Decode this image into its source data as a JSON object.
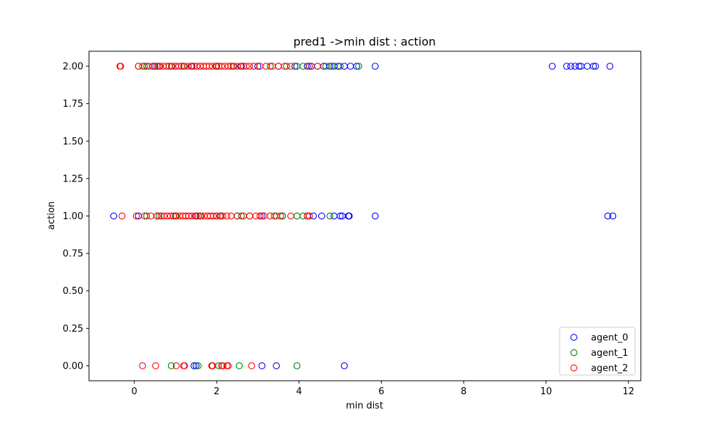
{
  "chart_data": {
    "type": "scatter",
    "title": "pred1 ->min dist : action",
    "xlabel": "min dist",
    "ylabel": "action",
    "xlim": [
      -1.1,
      12.3
    ],
    "ylim": [
      -0.1,
      2.1
    ],
    "xticks": [
      0,
      2,
      4,
      6,
      8,
      10,
      12
    ],
    "xtick_labels": [
      "0",
      "2",
      "4",
      "6",
      "8",
      "10",
      "12"
    ],
    "yticks": [
      0.0,
      0.25,
      0.5,
      0.75,
      1.0,
      1.25,
      1.5,
      1.75,
      2.0
    ],
    "ytick_labels": [
      "0.00",
      "0.25",
      "0.50",
      "0.75",
      "1.00",
      "1.25",
      "1.50",
      "1.75",
      "2.00"
    ],
    "grid": false,
    "legend_position": "bottom-right",
    "marker": "open-circle",
    "series": [
      {
        "name": "agent_0",
        "color": "#0000ff",
        "points": [
          [
            0.45,
            2
          ],
          [
            0.5,
            2
          ],
          [
            0.55,
            2
          ],
          [
            1.0,
            2
          ],
          [
            1.4,
            2
          ],
          [
            2.0,
            2
          ],
          [
            2.6,
            2
          ],
          [
            3.0,
            2
          ],
          [
            3.5,
            2
          ],
          [
            3.9,
            2
          ],
          [
            4.2,
            2
          ],
          [
            4.3,
            2
          ],
          [
            4.6,
            2
          ],
          [
            4.75,
            2
          ],
          [
            4.85,
            2
          ],
          [
            4.95,
            2
          ],
          [
            5.1,
            2
          ],
          [
            5.25,
            2
          ],
          [
            5.4,
            2
          ],
          [
            5.85,
            2
          ],
          [
            10.15,
            2
          ],
          [
            10.5,
            2
          ],
          [
            10.6,
            2
          ],
          [
            10.7,
            2
          ],
          [
            10.8,
            2
          ],
          [
            10.85,
            2
          ],
          [
            11.0,
            2
          ],
          [
            11.15,
            2
          ],
          [
            11.2,
            2
          ],
          [
            11.55,
            2
          ],
          [
            -0.5,
            1
          ],
          [
            0.1,
            1
          ],
          [
            0.55,
            1
          ],
          [
            1.0,
            1
          ],
          [
            1.5,
            1
          ],
          [
            2.0,
            1
          ],
          [
            2.5,
            1
          ],
          [
            3.1,
            1
          ],
          [
            3.6,
            1
          ],
          [
            4.2,
            1
          ],
          [
            4.35,
            1
          ],
          [
            4.55,
            1
          ],
          [
            4.85,
            1
          ],
          [
            5.0,
            1
          ],
          [
            5.05,
            1
          ],
          [
            5.2,
            1
          ],
          [
            5.22,
            1
          ],
          [
            5.85,
            1
          ],
          [
            11.5,
            1
          ],
          [
            11.62,
            1
          ],
          [
            1.45,
            0
          ],
          [
            1.5,
            0
          ],
          [
            3.1,
            0
          ],
          [
            3.45,
            0
          ],
          [
            5.1,
            0
          ]
        ]
      },
      {
        "name": "agent_1",
        "color": "#008000",
        "points": [
          [
            0.1,
            2
          ],
          [
            0.2,
            2
          ],
          [
            0.3,
            2
          ],
          [
            0.6,
            2
          ],
          [
            0.9,
            2
          ],
          [
            1.2,
            2
          ],
          [
            1.6,
            2
          ],
          [
            2.0,
            2
          ],
          [
            2.4,
            2
          ],
          [
            2.9,
            2
          ],
          [
            3.3,
            2
          ],
          [
            3.7,
            2
          ],
          [
            3.95,
            2
          ],
          [
            4.1,
            2
          ],
          [
            4.25,
            2
          ],
          [
            4.45,
            2
          ],
          [
            4.65,
            2
          ],
          [
            4.8,
            2
          ],
          [
            5.0,
            2
          ],
          [
            5.45,
            2
          ],
          [
            0.3,
            1
          ],
          [
            0.6,
            1
          ],
          [
            1.0,
            1
          ],
          [
            1.6,
            1
          ],
          [
            2.1,
            1
          ],
          [
            2.6,
            1
          ],
          [
            2.8,
            1
          ],
          [
            3.4,
            1
          ],
          [
            3.6,
            1
          ],
          [
            3.95,
            1
          ],
          [
            4.1,
            1
          ],
          [
            4.75,
            1
          ],
          [
            0.9,
            0
          ],
          [
            1.55,
            0
          ],
          [
            1.9,
            0
          ],
          [
            2.05,
            0
          ],
          [
            2.55,
            0
          ],
          [
            3.95,
            0
          ]
        ]
      },
      {
        "name": "agent_2",
        "color": "#ff0000",
        "points": [
          [
            -0.35,
            2
          ],
          [
            -0.33,
            2
          ],
          [
            0.1,
            2
          ],
          [
            0.25,
            2
          ],
          [
            0.35,
            2
          ],
          [
            0.45,
            2
          ],
          [
            0.55,
            2
          ],
          [
            0.62,
            2
          ],
          [
            0.7,
            2
          ],
          [
            0.78,
            2
          ],
          [
            0.85,
            2
          ],
          [
            0.92,
            2
          ],
          [
            1.0,
            2
          ],
          [
            1.08,
            2
          ],
          [
            1.15,
            2
          ],
          [
            1.22,
            2
          ],
          [
            1.3,
            2
          ],
          [
            1.38,
            2
          ],
          [
            1.45,
            2
          ],
          [
            1.52,
            2
          ],
          [
            1.6,
            2
          ],
          [
            1.68,
            2
          ],
          [
            1.75,
            2
          ],
          [
            1.82,
            2
          ],
          [
            1.9,
            2
          ],
          [
            1.98,
            2
          ],
          [
            2.05,
            2
          ],
          [
            2.12,
            2
          ],
          [
            2.2,
            2
          ],
          [
            2.28,
            2
          ],
          [
            2.35,
            2
          ],
          [
            2.42,
            2
          ],
          [
            2.5,
            2
          ],
          [
            2.58,
            2
          ],
          [
            2.65,
            2
          ],
          [
            2.72,
            2
          ],
          [
            2.8,
            2
          ],
          [
            2.9,
            2
          ],
          [
            3.05,
            2
          ],
          [
            3.2,
            2
          ],
          [
            3.35,
            2
          ],
          [
            3.5,
            2
          ],
          [
            3.65,
            2
          ],
          [
            3.8,
            2
          ],
          [
            4.25,
            2
          ],
          [
            4.45,
            2
          ],
          [
            -0.3,
            1
          ],
          [
            0.05,
            1
          ],
          [
            0.25,
            1
          ],
          [
            0.4,
            1
          ],
          [
            0.55,
            1
          ],
          [
            0.65,
            1
          ],
          [
            0.72,
            1
          ],
          [
            0.8,
            1
          ],
          [
            0.88,
            1
          ],
          [
            0.95,
            1
          ],
          [
            1.02,
            1
          ],
          [
            1.1,
            1
          ],
          [
            1.18,
            1
          ],
          [
            1.25,
            1
          ],
          [
            1.32,
            1
          ],
          [
            1.4,
            1
          ],
          [
            1.48,
            1
          ],
          [
            1.55,
            1
          ],
          [
            1.62,
            1
          ],
          [
            1.7,
            1
          ],
          [
            1.78,
            1
          ],
          [
            1.85,
            1
          ],
          [
            1.92,
            1
          ],
          [
            2.0,
            1
          ],
          [
            2.08,
            1
          ],
          [
            2.15,
            1
          ],
          [
            2.25,
            1
          ],
          [
            2.35,
            1
          ],
          [
            2.5,
            1
          ],
          [
            2.65,
            1
          ],
          [
            2.8,
            1
          ],
          [
            2.95,
            1
          ],
          [
            3.05,
            1
          ],
          [
            3.15,
            1
          ],
          [
            3.3,
            1
          ],
          [
            3.45,
            1
          ],
          [
            3.55,
            1
          ],
          [
            3.8,
            1
          ],
          [
            4.2,
            1
          ],
          [
            4.25,
            1
          ],
          [
            0.2,
            0
          ],
          [
            0.52,
            0
          ],
          [
            1.02,
            0
          ],
          [
            1.2,
            0
          ],
          [
            1.22,
            0
          ],
          [
            1.88,
            0
          ],
          [
            1.9,
            0
          ],
          [
            2.12,
            0
          ],
          [
            2.15,
            0
          ],
          [
            2.25,
            0
          ],
          [
            2.28,
            0
          ],
          [
            2.85,
            0
          ]
        ]
      }
    ]
  }
}
